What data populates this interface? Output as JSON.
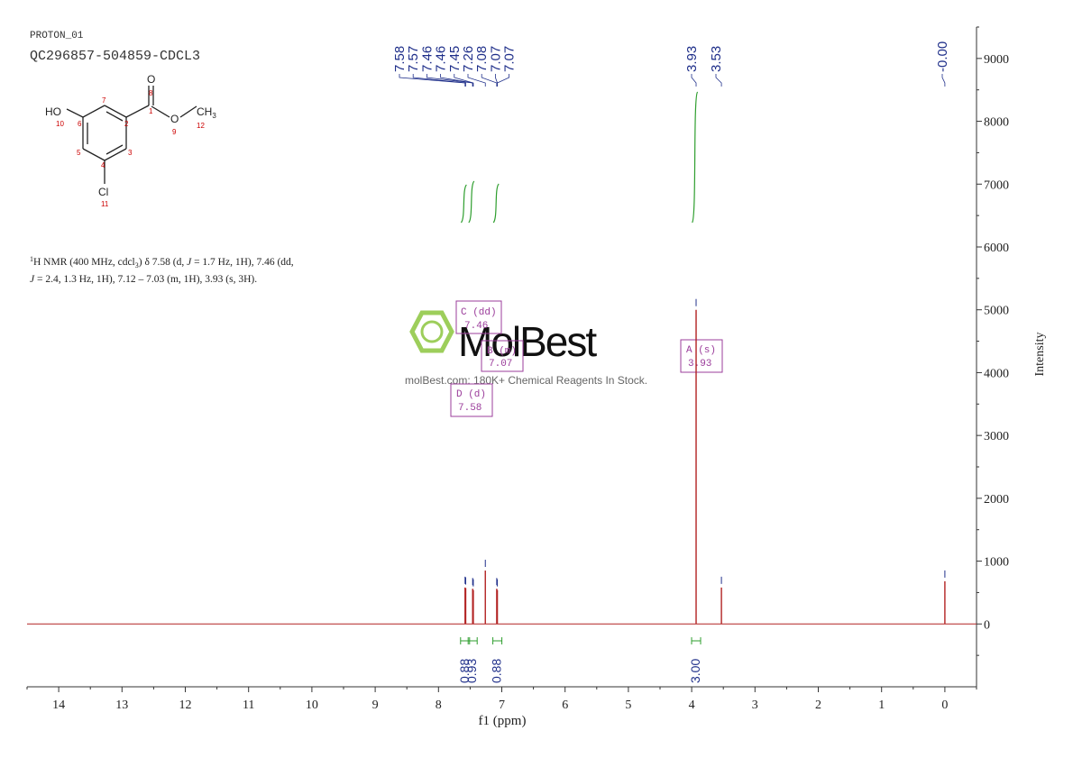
{
  "header": {
    "experiment": "PROTON_01",
    "sample": "QC296857-504859-CDCL3"
  },
  "structure": {
    "atoms": [
      {
        "label": "HO",
        "num": "10"
      },
      {
        "label": "O",
        "num": "8"
      },
      {
        "label": "O",
        "num": "9"
      },
      {
        "label": "CH",
        "sub": "3",
        "num": "12"
      },
      {
        "label": "Cl",
        "num": "11"
      }
    ],
    "ring_numbers": [
      "1",
      "2",
      "3",
      "4",
      "5",
      "6",
      "7"
    ]
  },
  "nmr_text": {
    "line1_sup": "1",
    "line1_a": "H NMR (400 MHz, cdcl",
    "line1_sub": "3",
    "line1_b": ") δ 7.58 (d, ",
    "line1_J": "J",
    "line1_c": " = 1.7 Hz, 1H), 7.46 (dd,",
    "line2_J": "J",
    "line2_a": " = 2.4, 1.3 Hz, 1H), 7.12 – 7.03 (m, 1H), 3.93 (s, 3H)."
  },
  "watermark": {
    "brand": "MolBest",
    "tagline": "molBest.com: 180K+ Chemical Reagents In Stock."
  },
  "peak_labels": [
    {
      "text": "7.58",
      "x": 7.58
    },
    {
      "text": "7.57",
      "x": 7.57
    },
    {
      "text": "7.46",
      "x": 7.46
    },
    {
      "text": "7.46",
      "x": 7.46
    },
    {
      "text": "7.45",
      "x": 7.45
    },
    {
      "text": "7.26",
      "x": 7.26
    },
    {
      "text": "7.08",
      "x": 7.08
    },
    {
      "text": "7.07",
      "x": 7.07
    },
    {
      "text": "7.07",
      "x": 7.07
    },
    {
      "text": "3.93",
      "x": 3.93
    },
    {
      "text": "3.53",
      "x": 3.53
    },
    {
      "text": "-0.00",
      "x": 0.0
    }
  ],
  "multiplets": [
    {
      "name": "C (dd)",
      "shift": "7.46"
    },
    {
      "name": "B (m)",
      "shift": "7.07"
    },
    {
      "name": "D (d)",
      "shift": "7.58"
    },
    {
      "name": "A (s)",
      "shift": "3.93"
    }
  ],
  "integrals": [
    {
      "value": "0.88",
      "center": 7.58
    },
    {
      "value": "0.93",
      "center": 7.46
    },
    {
      "value": "0.88",
      "center": 7.07
    },
    {
      "value": "3.00",
      "center": 3.93
    }
  ],
  "chart_data": {
    "type": "line",
    "xlabel": "f1 (ppm)",
    "ylabel": "Intensity",
    "xlim": [
      14.5,
      -0.5
    ],
    "ylim": [
      -1000,
      9500
    ],
    "x_ticks": [
      "14",
      "13",
      "12",
      "11",
      "10",
      "9",
      "8",
      "7",
      "6",
      "5",
      "4",
      "3",
      "2",
      "1",
      "0"
    ],
    "y_ticks": [
      "0",
      "1000",
      "2000",
      "3000",
      "4000",
      "5000",
      "6000",
      "7000",
      "8000",
      "9000"
    ],
    "peaks": [
      {
        "x": 7.58,
        "y": 580
      },
      {
        "x": 7.57,
        "y": 570
      },
      {
        "x": 7.46,
        "y": 560
      },
      {
        "x": 7.45,
        "y": 540
      },
      {
        "x": 7.26,
        "y": 850
      },
      {
        "x": 7.08,
        "y": 560
      },
      {
        "x": 7.07,
        "y": 540
      },
      {
        "x": 3.93,
        "y": 5000
      },
      {
        "x": 3.53,
        "y": 580
      },
      {
        "x": 0.0,
        "y": 680
      }
    ],
    "colors": {
      "spectrum": "#b22222",
      "integral": "#2e9e2e",
      "label": "#1f2f8a",
      "box": "#9b3d9b",
      "axis": "#333333"
    }
  }
}
